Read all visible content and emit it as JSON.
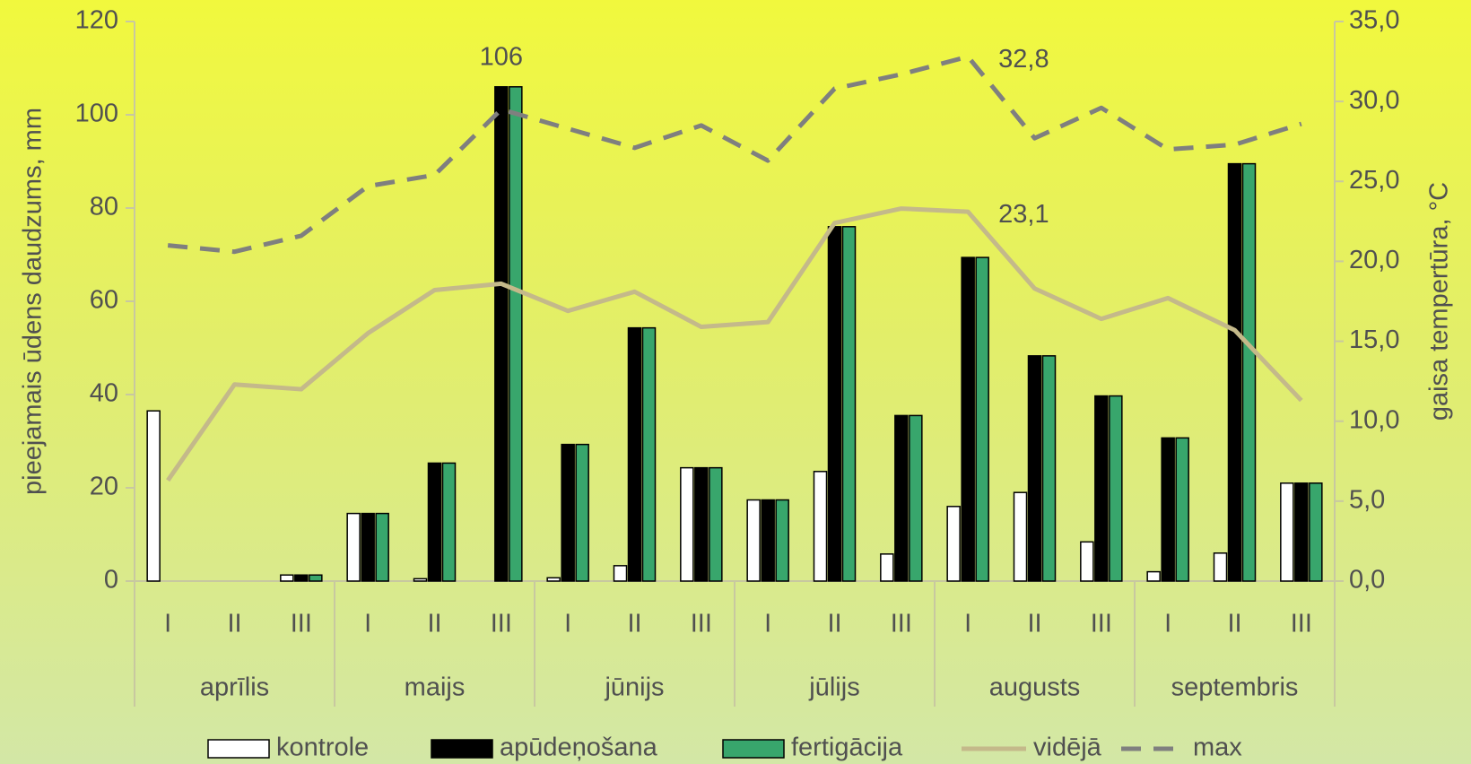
{
  "chart_data": {
    "type": "bar-line",
    "categories": [
      "I",
      "II",
      "III",
      "I",
      "II",
      "III",
      "I",
      "II",
      "III",
      "I",
      "II",
      "III",
      "I",
      "II",
      "III",
      "I",
      "II",
      "III"
    ],
    "groups": [
      "aprīlis",
      "maijs",
      "jūnijs",
      "jūlijs",
      "augusts",
      "septembris"
    ],
    "ylabel": "pieejamais ūdens daudzums, mm",
    "y2label": "gaisa tempertūra, °C",
    "ylim": [
      0,
      120
    ],
    "yticks": [
      0,
      20,
      40,
      60,
      80,
      100,
      120
    ],
    "y2lim": [
      0,
      35
    ],
    "y2ticks": [
      {
        "value": 0,
        "label": "0,0"
      },
      {
        "value": 5,
        "label": "5,0"
      },
      {
        "value": 10,
        "label": "10,0"
      },
      {
        "value": 15,
        "label": "15,0"
      },
      {
        "value": 20,
        "label": "20,0"
      },
      {
        "value": 25,
        "label": "25,0"
      },
      {
        "value": 30,
        "label": "30,0"
      },
      {
        "value": 35,
        "label": "35,0"
      }
    ],
    "legend": "bottom",
    "series": [
      {
        "name": "kontrole",
        "type": "bar",
        "color": "#ffffff",
        "values": [
          36.5,
          0,
          1.3,
          14.5,
          0.5,
          0,
          0.7,
          3.3,
          24.3,
          17.4,
          23.5,
          5.8,
          16,
          19,
          8.4,
          2,
          6,
          21
        ]
      },
      {
        "name": "apūdeņošana",
        "type": "bar",
        "color": "#000000",
        "values": [
          0,
          0,
          1.3,
          14.5,
          25.3,
          106,
          29.3,
          54.3,
          24.3,
          17.4,
          76,
          35.5,
          69.4,
          48.3,
          39.7,
          30.7,
          89.5,
          21
        ],
        "value_labels": [
          null,
          null,
          null,
          null,
          null,
          "106",
          null,
          null,
          null,
          null,
          null,
          null,
          null,
          null,
          null,
          null,
          null,
          null
        ]
      },
      {
        "name": "fertigācija",
        "type": "bar",
        "color": "#38a66c",
        "values": [
          0,
          0,
          1.3,
          14.5,
          25.3,
          106,
          29.3,
          54.3,
          24.3,
          17.4,
          76,
          35.5,
          69.4,
          48.3,
          39.7,
          30.7,
          89.5,
          21
        ]
      },
      {
        "name": "vidējā",
        "type": "line",
        "axis": "y2",
        "color": "#c4b98a",
        "dash": false,
        "values": [
          6.3,
          12.3,
          12.0,
          15.5,
          18.2,
          18.6,
          16.9,
          18.1,
          15.9,
          16.2,
          22.4,
          23.3,
          23.1,
          18.3,
          16.4,
          17.7,
          15.7,
          11.3
        ],
        "value_labels": [
          null,
          null,
          null,
          null,
          null,
          null,
          null,
          null,
          null,
          null,
          null,
          null,
          "23,1",
          null,
          null,
          null,
          null,
          null
        ]
      },
      {
        "name": "max",
        "type": "line",
        "axis": "y2",
        "color": "#7f7f7f",
        "dash": true,
        "values": [
          21.0,
          20.6,
          21.6,
          24.7,
          25.4,
          29.5,
          28.3,
          27.1,
          28.5,
          26.3,
          30.8,
          31.7,
          32.8,
          27.7,
          29.6,
          27.0,
          27.3,
          28.6
        ],
        "value_labels": [
          null,
          null,
          null,
          null,
          null,
          null,
          null,
          null,
          null,
          null,
          null,
          null,
          "32,8",
          null,
          null,
          null,
          null,
          null
        ]
      }
    ]
  }
}
